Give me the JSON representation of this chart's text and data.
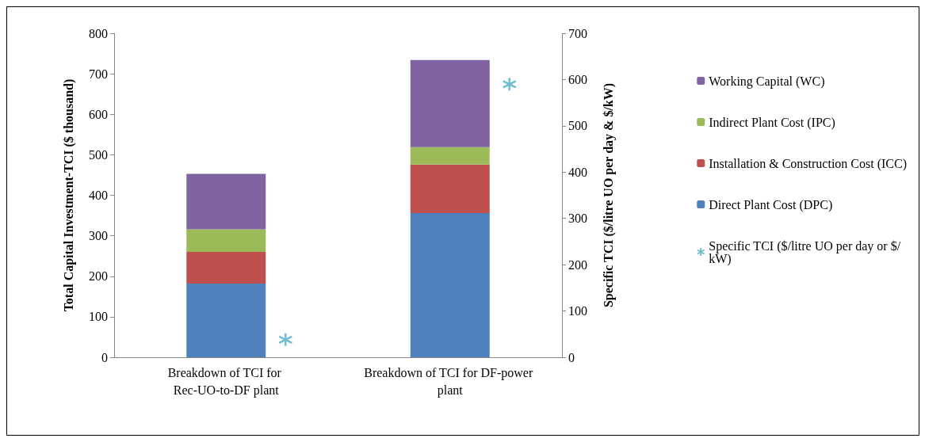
{
  "chart_data": {
    "type": "bar",
    "stacked": true,
    "ylabel": "Total Capital Investment-TCI ($ thousand)",
    "y2label": "Specific TCI ($/litre UO per day & $/kW)",
    "categories": [
      "Breakdown of TCI for Rec-UO-to-DF plant",
      "Breakdown of TCI for DF-power plant"
    ],
    "series": [
      {
        "name": "Direct Plant Cost (DPC)",
        "color": "#4f81bd",
        "values": [
          182,
          356
        ]
      },
      {
        "name": "Installation & Construction Cost (ICC)",
        "color": "#c0504d",
        "values": [
          78,
          120
        ]
      },
      {
        "name": "Indirect Plant Cost (IPC)",
        "color": "#9bbb59",
        "values": [
          56,
          43
        ]
      },
      {
        "name": "Working Capital (WC)",
        "color": "#8064a2",
        "values": [
          137,
          215
        ]
      },
      {
        "name": "Specific TCI ($/litre UO per day or $/kW)",
        "type": "scatter",
        "axis": "y2",
        "marker": "cross",
        "color": "#4bacc6",
        "x": [
          "Breakdown of TCI for Rec-UO-to-DF plant",
          "Breakdown of TCI for DF-power plant"
        ],
        "values": [
          38,
          590
        ]
      }
    ],
    "ylim": [
      0,
      800
    ],
    "yticks": [
      0,
      100,
      200,
      300,
      400,
      500,
      600,
      700,
      800
    ],
    "y2lim": [
      0,
      700
    ],
    "y2ticks": [
      0,
      100,
      200,
      300,
      400,
      500,
      600,
      700
    ],
    "grid": false,
    "legend": "right"
  }
}
